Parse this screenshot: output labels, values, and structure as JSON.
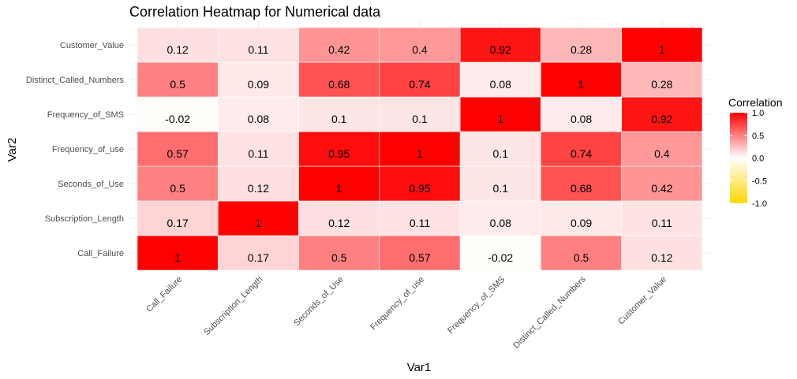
{
  "chart_data": {
    "type": "heatmap",
    "title": "Correlation Heatmap for Numerical data",
    "xlabel": "Var1",
    "ylabel": "Var2",
    "x_categories": [
      "Call_Failure",
      "Subscription_Length",
      "Seconds_of_Use",
      "Frequency_of_use",
      "Frequency_of_SMS",
      "Distinct_Called_Numbers",
      "Customer_Value"
    ],
    "y_categories": [
      "Call_Failure",
      "Subscription_Length",
      "Seconds_of_Use",
      "Frequency_of_use",
      "Frequency_of_SMS",
      "Distinct_Called_Numbers",
      "Customer_Value"
    ],
    "values": [
      [
        1,
        0.17,
        0.5,
        0.57,
        -0.02,
        0.5,
        0.12
      ],
      [
        0.17,
        1,
        0.12,
        0.11,
        0.08,
        0.09,
        0.11
      ],
      [
        0.5,
        0.12,
        1,
        0.95,
        0.1,
        0.68,
        0.42
      ],
      [
        0.57,
        0.11,
        0.95,
        1,
        0.1,
        0.74,
        0.4
      ],
      [
        -0.02,
        0.08,
        0.1,
        0.1,
        1,
        0.08,
        0.92
      ],
      [
        0.5,
        0.09,
        0.68,
        0.74,
        0.08,
        1,
        0.28
      ],
      [
        0.12,
        0.11,
        0.42,
        0.4,
        0.92,
        0.28,
        1
      ]
    ],
    "legend": {
      "title": "Correlation",
      "placement": "right",
      "ticks": [
        "1.0",
        "0.5",
        "0.0",
        "-0.5",
        "-1.0"
      ],
      "range": [
        -1,
        1
      ]
    },
    "colors": {
      "low": "#FFD700",
      "mid": "#FFFFFF",
      "high": "#FF0000",
      "grid": "#ebebeb"
    },
    "grid": true
  }
}
